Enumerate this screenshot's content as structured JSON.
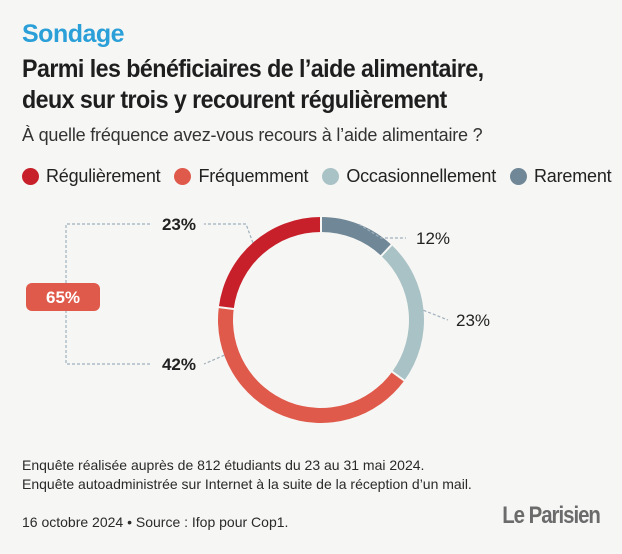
{
  "kicker": "Sondage",
  "title_line1": "Parmi les bénéficiaires de l’aide alimentaire,",
  "title_line2": "deux sur trois y recourent régulièrement",
  "subtitle": "À quelle fréquence avez-vous recours à l’aide alimentaire ?",
  "footer": {
    "note_line1": "Enquête réalisée auprès de 812 étudiants du 23 au 31 mai 2024.",
    "note_line2": "Enquête autoadministrée sur Internet à la suite de la réception d’un mail.",
    "source": "16 octobre 2024 • Source : Ifop pour Cop1.",
    "logo": "Le Parisien"
  },
  "colors": {
    "regulierement": "#c8202a",
    "frequemment": "#e05a4b",
    "occasionnellement": "#a9c2c6",
    "rarement": "#6f8796",
    "kicker": "#2a9fd8",
    "leader": "#9fb0bd"
  },
  "chart_data": {
    "type": "pie",
    "variant": "donut",
    "start": "top, clockwise",
    "series": [
      {
        "name": "Rarement",
        "value": 12,
        "label": "12%",
        "color": "#6f8796"
      },
      {
        "name": "Occasionnellement",
        "value": 23,
        "label": "23%",
        "color": "#a9c2c6"
      },
      {
        "name": "Fréquemment",
        "value": 42,
        "label": "42%",
        "color": "#e05a4b"
      },
      {
        "name": "Régulièrement",
        "value": 23,
        "label": "23%",
        "color": "#c8202a"
      }
    ],
    "legend_order": [
      "Régulièrement",
      "Fréquemment",
      "Occasionnellement",
      "Rarement"
    ],
    "legend_position": "top",
    "annotation": {
      "label": "65%",
      "covers": [
        "Régulièrement",
        "Fréquemment"
      ],
      "color": "#e05a4b"
    }
  }
}
